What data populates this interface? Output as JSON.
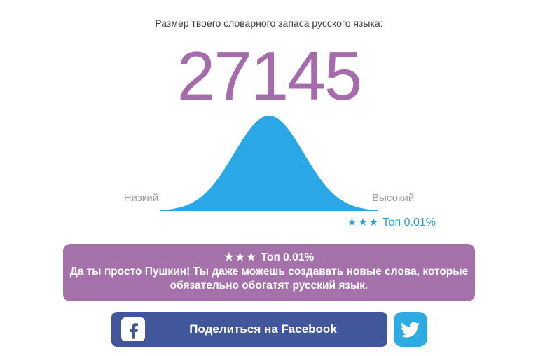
{
  "header": {
    "title": "Размер твоего словарного запаса русского языка:"
  },
  "score": {
    "value": "27145",
    "color": "#a66bac"
  },
  "chart_data": {
    "type": "area",
    "subtype": "normal-distribution-bell-curve",
    "title": "",
    "x_axis_labels": [
      "Низкий",
      "Высокий"
    ],
    "annotation": {
      "stars": "★★★",
      "label": "Топ 0.01%"
    },
    "user_score": 27145,
    "curve": {
      "mean": 0.5,
      "sigma": 0.16,
      "x_range": [
        0,
        1
      ],
      "peak_normalized": 1
    },
    "color": "#29a7e6",
    "grid": false,
    "legend": false
  },
  "banner": {
    "stars": "★★★",
    "rank": "Топ 0.01%",
    "message": "Да ты просто Пушкин! Ты даже можешь создавать новые слова, которые обязательно обогатят русский язык.",
    "bg_color": "#a471ab",
    "text_color": "#ffffff"
  },
  "share": {
    "facebook": {
      "label": "Поделиться на Facebook",
      "color": "#42569b"
    },
    "twitter": {
      "color": "#2caae1"
    }
  },
  "colors": {
    "title_text": "#3d3d3d",
    "axis_label_gray": "#9d9d9d",
    "annotation_blue": "#2a9fd8"
  }
}
